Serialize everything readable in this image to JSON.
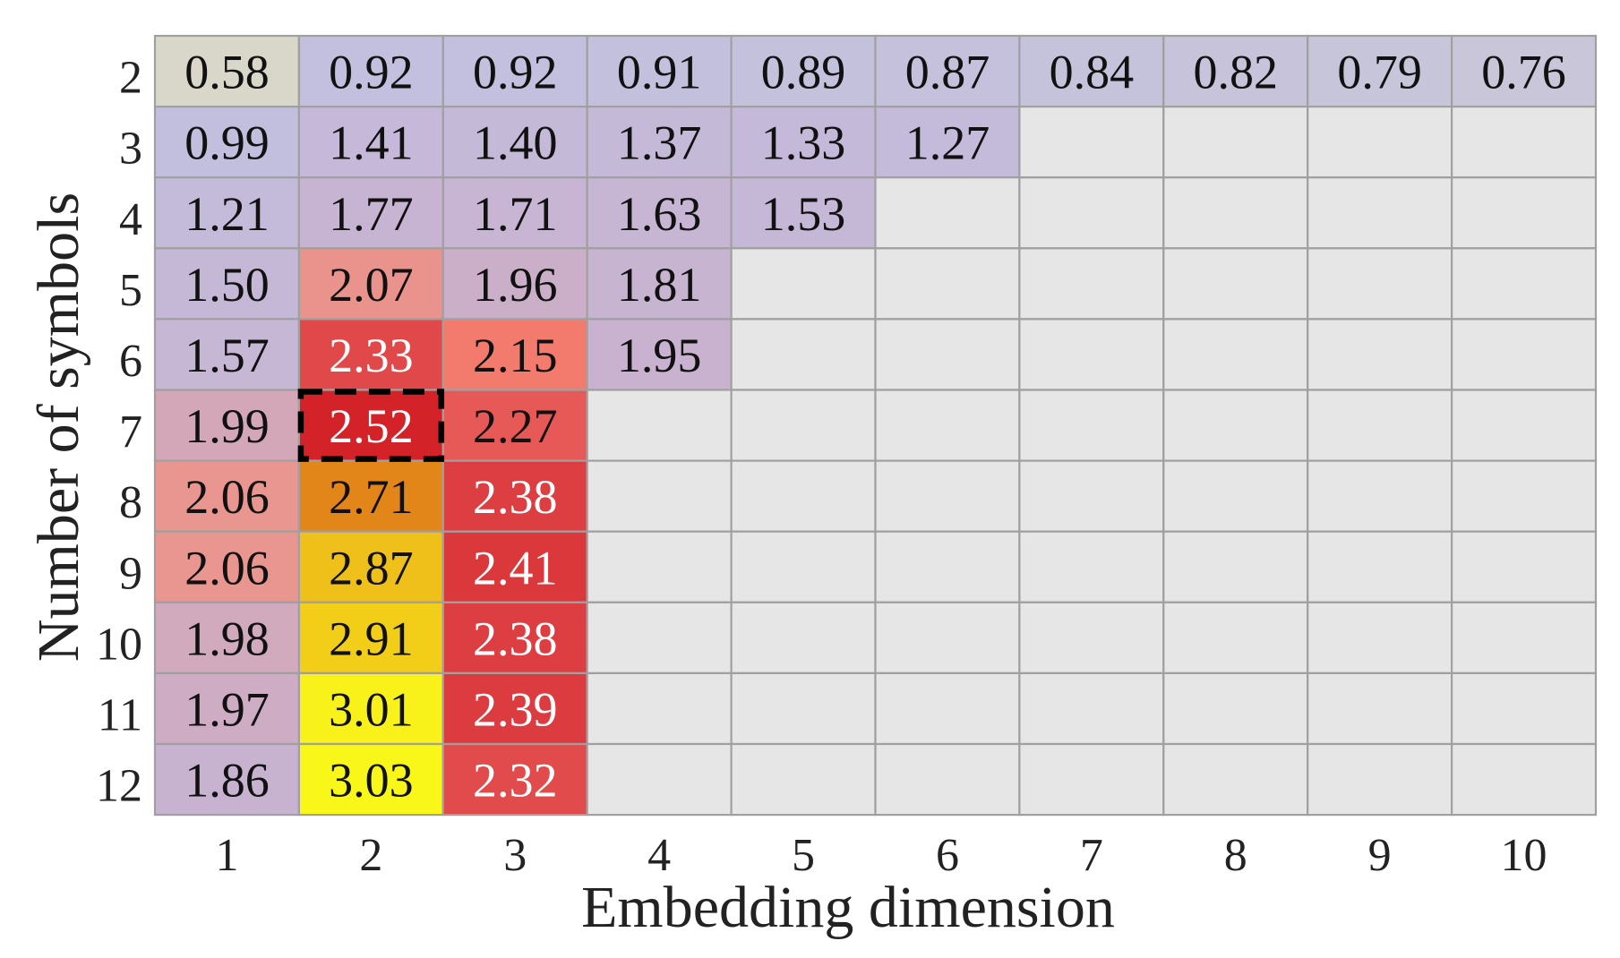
{
  "chart_data": {
    "type": "heatmap",
    "title": "",
    "xlabel": "Embedding dimension",
    "ylabel": "Number of symbols",
    "x": [
      1,
      2,
      3,
      4,
      5,
      6,
      7,
      8,
      9,
      10
    ],
    "y": [
      2,
      3,
      4,
      5,
      6,
      7,
      8,
      9,
      10,
      11,
      12
    ],
    "values": [
      [
        0.58,
        0.92,
        0.92,
        0.91,
        0.89,
        0.87,
        0.84,
        0.82,
        0.79,
        0.76
      ],
      [
        0.99,
        1.41,
        1.4,
        1.37,
        1.33,
        1.27,
        null,
        null,
        null,
        null
      ],
      [
        1.21,
        1.77,
        1.71,
        1.63,
        1.53,
        null,
        null,
        null,
        null,
        null
      ],
      [
        1.5,
        2.07,
        1.96,
        1.81,
        null,
        null,
        null,
        null,
        null,
        null
      ],
      [
        1.57,
        2.33,
        2.15,
        1.95,
        null,
        null,
        null,
        null,
        null,
        null
      ],
      [
        1.99,
        2.52,
        2.27,
        null,
        null,
        null,
        null,
        null,
        null,
        null
      ],
      [
        2.06,
        2.71,
        2.38,
        null,
        null,
        null,
        null,
        null,
        null,
        null
      ],
      [
        2.06,
        2.87,
        2.41,
        null,
        null,
        null,
        null,
        null,
        null,
        null
      ],
      [
        1.98,
        2.91,
        2.38,
        null,
        null,
        null,
        null,
        null,
        null,
        null
      ],
      [
        1.97,
        3.01,
        2.39,
        null,
        null,
        null,
        null,
        null,
        null,
        null
      ],
      [
        1.86,
        3.03,
        2.32,
        null,
        null,
        null,
        null,
        null,
        null,
        null
      ]
    ],
    "highlight": {
      "x": 2,
      "y": 7,
      "style": "dashed-black-box"
    },
    "empty_color": "#e6e6e6",
    "colors": {
      "grid": "#a0a0a0",
      "empty": "#e6e6e6",
      "text_dark": "#111111",
      "text_light": "#ffffff",
      "highlight": "#000000"
    },
    "colormap": [
      {
        "v": 0.55,
        "color": "#dcdac6"
      },
      {
        "v": 0.76,
        "color": "#c8c6d8"
      },
      {
        "v": 0.95,
        "color": "#c2bedf"
      },
      {
        "v": 1.95,
        "color": "#c8b2cf"
      },
      {
        "v": 2.06,
        "color": "#e99590"
      },
      {
        "v": 2.15,
        "color": "#f37b6e"
      },
      {
        "v": 2.33,
        "color": "#e0484a"
      },
      {
        "v": 2.52,
        "color": "#d42328"
      },
      {
        "v": 2.71,
        "color": "#e2861a"
      },
      {
        "v": 2.87,
        "color": "#efc019"
      },
      {
        "v": 3.01,
        "color": "#f8f21a"
      },
      {
        "v": 3.05,
        "color": "#fafa1a"
      }
    ],
    "light_text_range": [
      2.3,
      2.6
    ]
  }
}
